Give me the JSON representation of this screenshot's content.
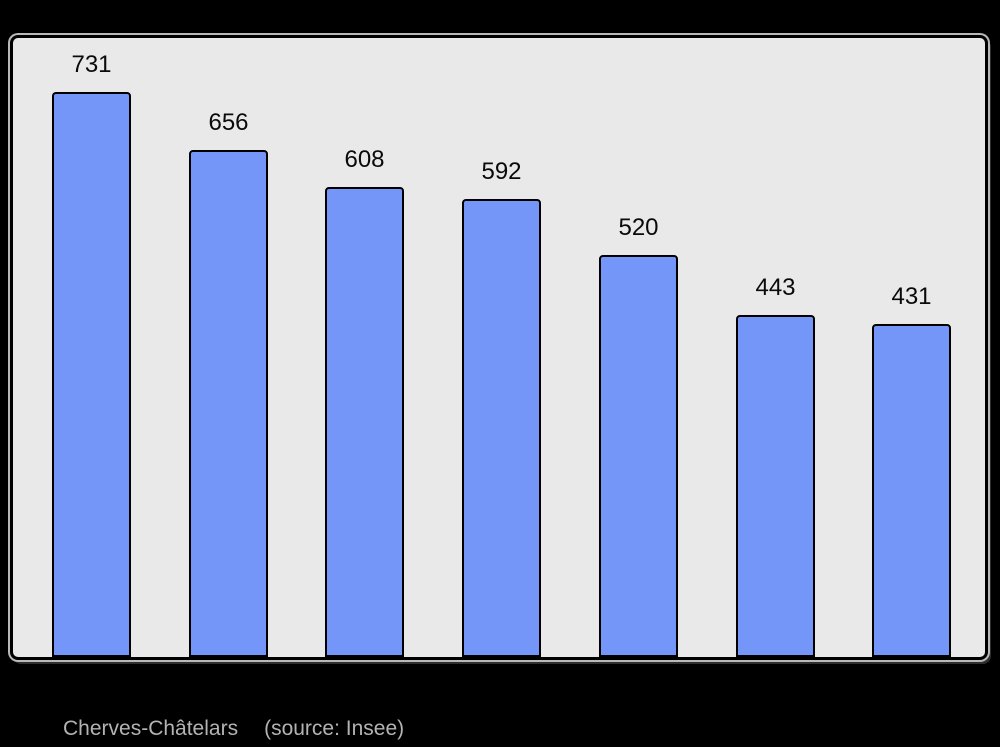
{
  "chart_data": {
    "type": "bar",
    "values": [
      731,
      656,
      608,
      592,
      520,
      443,
      431
    ],
    "value_labels_shown": true,
    "title": "",
    "xlabel": "",
    "ylabel": "",
    "ylim": [
      0,
      800
    ],
    "grid": false,
    "legend": false,
    "bar_color": "#7496f8",
    "bar_border_color": "#000000",
    "value_label_color": "#0a0a0a",
    "plot_background": "#e9e9e9",
    "page_background": "#000000"
  },
  "caption": {
    "name": "Cherves-Châtelars",
    "source": "(source: Insee)",
    "color": "#b3b3b3"
  }
}
